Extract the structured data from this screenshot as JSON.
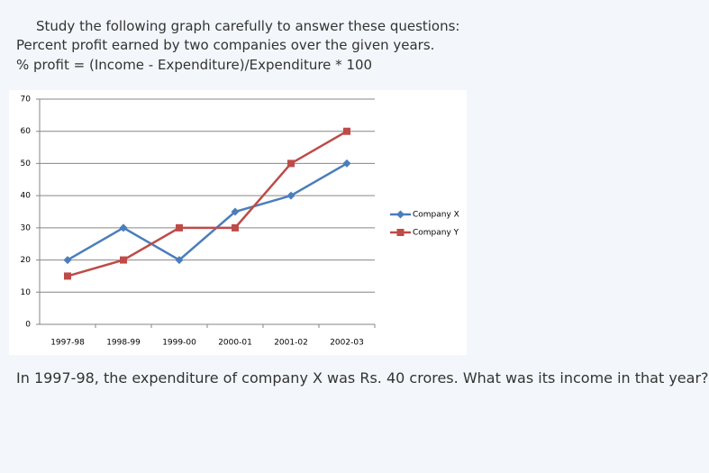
{
  "intro": [
    "Study the following graph carefully to answer these questions:",
    "Percent profit earned by two companies over the given years.",
    "% profit = (Income - Expenditure)/Expenditure * 100"
  ],
  "chart_data": {
    "type": "line",
    "categories": [
      "1997-98",
      "1998-99",
      "1999-00",
      "2000-01",
      "2001-02",
      "2002-03"
    ],
    "series": [
      {
        "name": "Company X",
        "color": "#4a7ebb",
        "marker": "diamond",
        "values": [
          20,
          30,
          20,
          35,
          40,
          50
        ]
      },
      {
        "name": "Company Y",
        "color": "#be4b48",
        "marker": "square",
        "values": [
          15,
          20,
          30,
          30,
          50,
          60
        ]
      }
    ],
    "ylim": [
      0,
      70
    ],
    "yticks": [
      0,
      10,
      20,
      30,
      40,
      50,
      60,
      70
    ],
    "grid": true,
    "legend": "right"
  },
  "question": "In 1997-98, the expenditure of company X was Rs. 40 crores. What was its income in that year?"
}
